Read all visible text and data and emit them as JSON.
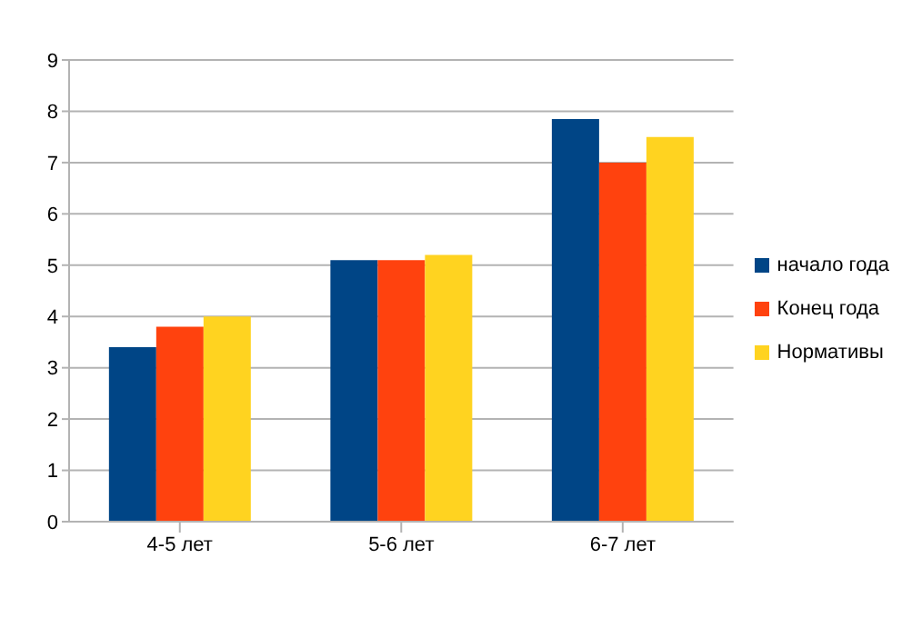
{
  "chart_data": {
    "type": "bar",
    "categories": [
      "4-5 лет",
      "5-6 лет",
      "6-7 лет"
    ],
    "series": [
      {
        "name": "начало года",
        "color": "#004586",
        "values": [
          3.4,
          5.1,
          7.85
        ]
      },
      {
        "name": "Конец года",
        "color": "#ff420e",
        "values": [
          3.8,
          5.1,
          7.0
        ]
      },
      {
        "name": "Нормативы",
        "color": "#ffd320",
        "values": [
          4.0,
          5.2,
          7.5
        ]
      }
    ],
    "ylim": [
      0,
      9
    ],
    "yticks": [
      0,
      1,
      2,
      3,
      4,
      5,
      6,
      7,
      8,
      9
    ],
    "grid": "y",
    "legend": "right"
  }
}
